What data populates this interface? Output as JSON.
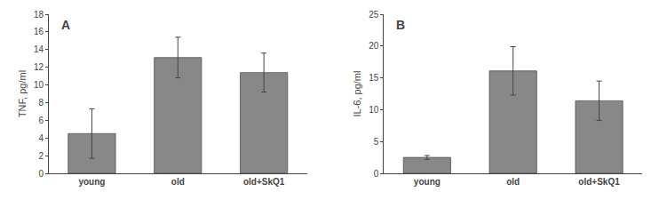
{
  "chart_data": [
    {
      "type": "bar",
      "annotations": [
        "A"
      ],
      "categories": [
        "young",
        "old",
        "old+SkQ1"
      ],
      "values": [
        4.5,
        13.1,
        11.4
      ],
      "errors": [
        2.8,
        2.3,
        2.2
      ],
      "ylabel": "TNF, pg/ml",
      "ylim": [
        0,
        18
      ],
      "yticks": [
        0,
        2,
        4,
        6,
        8,
        10,
        12,
        14,
        16,
        18
      ],
      "color": "#888888",
      "grid": false
    },
    {
      "type": "bar",
      "annotations": [
        "B"
      ],
      "categories": [
        "young",
        "old",
        "old+SkQ1"
      ],
      "values": [
        2.5,
        16.1,
        11.4
      ],
      "errors": [
        0.3,
        3.8,
        3.1
      ],
      "ylabel": "IL-6, pg/ml",
      "ylim": [
        0,
        25
      ],
      "yticks": [
        0,
        5,
        10,
        15,
        20,
        25
      ],
      "color": "#888888",
      "grid": false
    }
  ]
}
